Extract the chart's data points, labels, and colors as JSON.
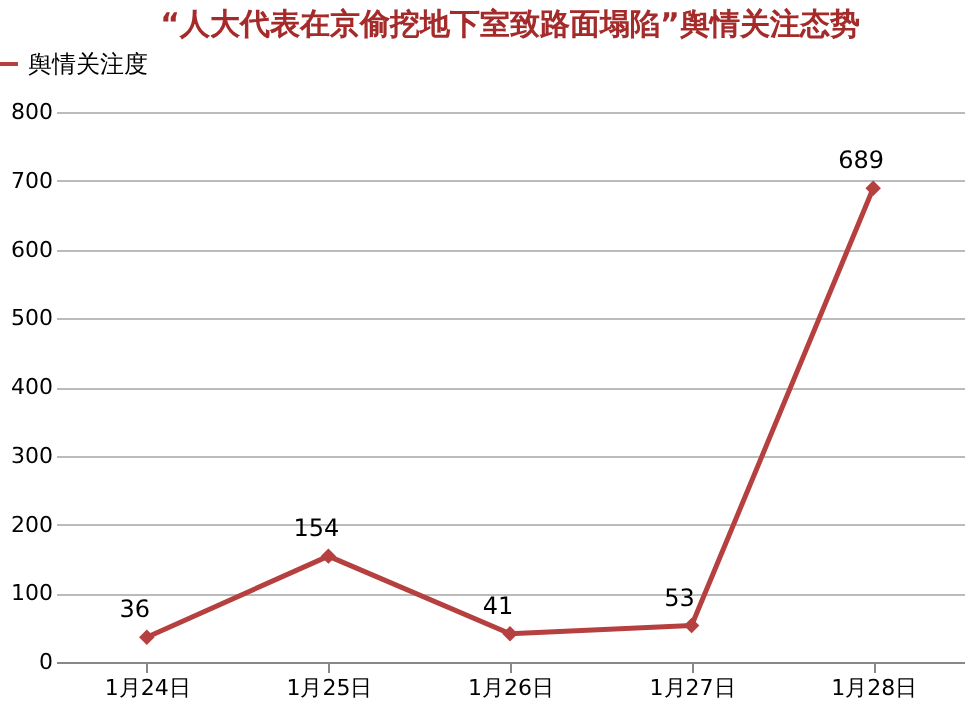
{
  "chart_data": {
    "type": "line",
    "title": "“人大代表在京偷挖地下室致路面塌陷”舆情关注态势",
    "categories": [
      "1月24日",
      "1月25日",
      "1月26日",
      "1月27日",
      "1月28日"
    ],
    "series": [
      {
        "name": "舆情关注度",
        "color": "#b5403f",
        "values": [
          36,
          154,
          41,
          53,
          689
        ]
      }
    ],
    "ylim": [
      0,
      800
    ],
    "yticks": [
      0,
      100,
      200,
      300,
      400,
      500,
      600,
      700,
      800
    ],
    "grid": "y",
    "legend": "top left",
    "marker": "diamond",
    "line_style": "solid",
    "data_labels": true
  }
}
